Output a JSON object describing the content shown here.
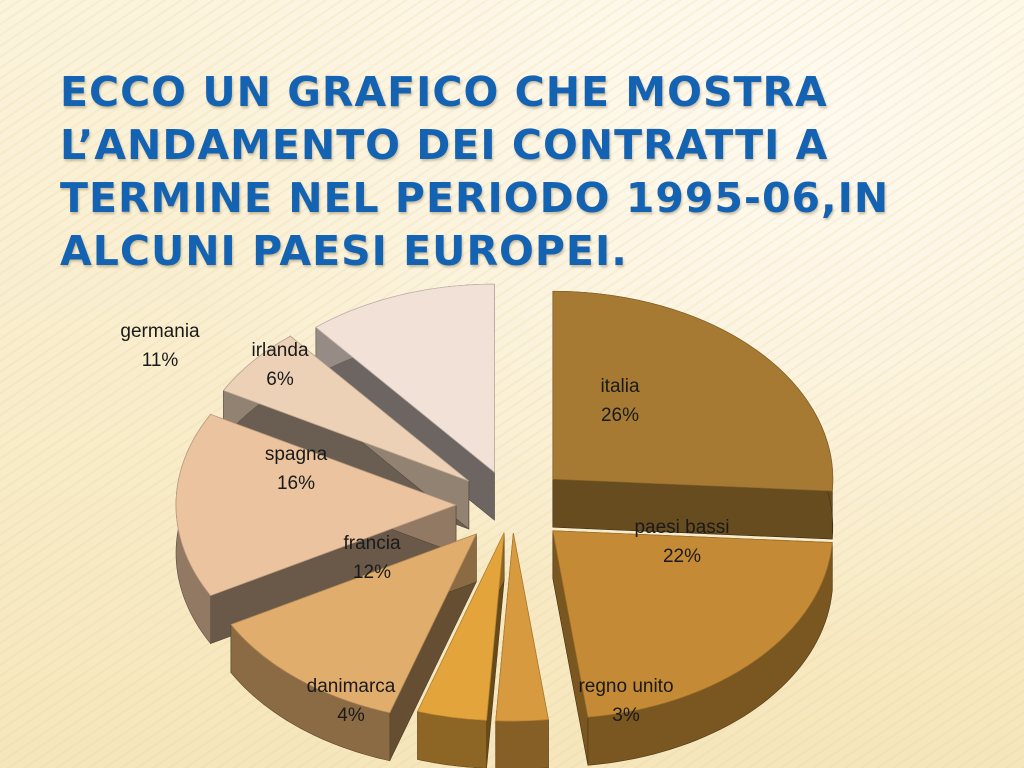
{
  "slide": {
    "title_lines": [
      "ECCO UN GRAFICO CHE MOSTRA",
      "L’ANDAMENTO DEI CONTRATTI A",
      "TERMINE NEL PERIODO 1995-06,IN",
      "ALCUNI PAESI EUROPEI."
    ]
  },
  "colors": {
    "title": "#1463b3",
    "italia": "#a67a33",
    "paesi_bassi": "#c48a35",
    "regno_unito": "#d79a3e",
    "danimarca": "#e4a43c",
    "francia": "#e0ad6d",
    "spagna": "#ebc39f",
    "irlanda": "#ecd1b7",
    "germania": "#f2e1d7"
  },
  "chart_data": {
    "type": "pie",
    "style": "3d-exploded",
    "title": "",
    "labels": [
      "italia",
      "paesi bassi",
      "regno unito",
      "danimarca",
      "francia",
      "spagna",
      "irlanda",
      "germania"
    ],
    "values": [
      26,
      22,
      3,
      4,
      12,
      16,
      6,
      11
    ],
    "value_labels": [
      "26%",
      "22%",
      "3%",
      "4%",
      "12%",
      "16%",
      "6%",
      "11%"
    ],
    "legend": "none"
  }
}
